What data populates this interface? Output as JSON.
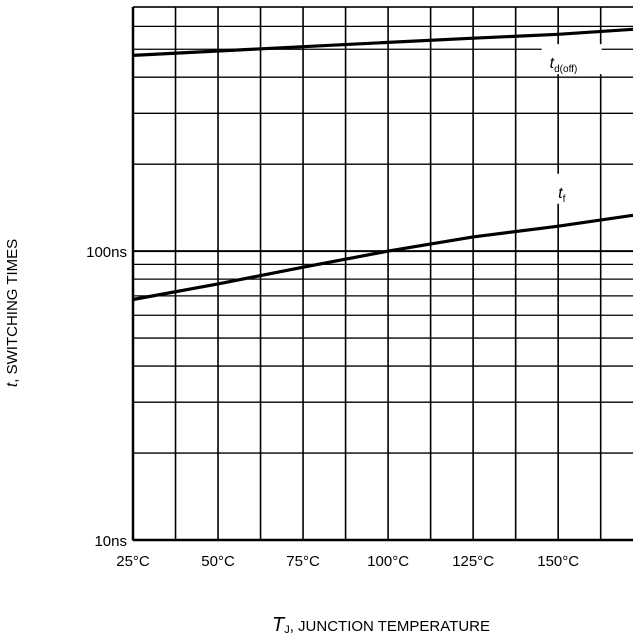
{
  "chart_data": {
    "type": "line",
    "title": "",
    "xlabel_var": "T",
    "xlabel_sub": "J",
    "xlabel_rest": ", JUNCTION TEMPERATURE",
    "ylabel_var": "t",
    "ylabel_rest": ", SWITCHING TIMES",
    "x_scale": "linear",
    "y_scale": "log",
    "xlim": [
      25,
      172
    ],
    "ylim": [
      10,
      700
    ],
    "x_ticks": [
      {
        "value": 25,
        "label": "25°C"
      },
      {
        "value": 50,
        "label": "50°C"
      },
      {
        "value": 75,
        "label": "75°C"
      },
      {
        "value": 100,
        "label": "100°C"
      },
      {
        "value": 125,
        "label": "125°C"
      },
      {
        "value": 150,
        "label": "150°C"
      }
    ],
    "y_ticks": [
      {
        "value": 100,
        "label": "100ns"
      },
      {
        "value": 10,
        "label": "10ns"
      }
    ],
    "grid": true,
    "series": [
      {
        "name_main": "t",
        "name_sub": "d(off)",
        "color": "#000000",
        "label_x": 147.5,
        "label_y": 430,
        "x": [
          25,
          50,
          75,
          100,
          125,
          150,
          172
        ],
        "y": [
          476,
          493,
          510,
          528,
          546,
          563,
          586
        ]
      },
      {
        "name_main": "t",
        "name_sub": "f",
        "color": "#000000",
        "label_x": 150,
        "label_y": 153,
        "x": [
          25,
          50,
          75,
          100,
          125,
          150,
          172
        ],
        "y": [
          68,
          77,
          88,
          100,
          112,
          122,
          133
        ]
      }
    ]
  }
}
